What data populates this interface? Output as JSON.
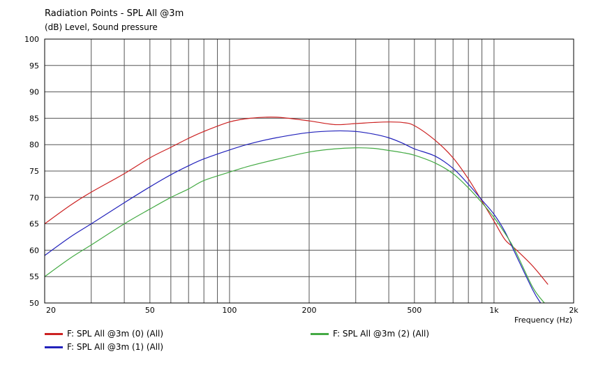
{
  "chart_data": {
    "type": "line",
    "title": "Radiation Points - SPL All @3m",
    "subtitle": "(dB)  Level, Sound pressure",
    "xlabel": "Frequency  (Hz)",
    "ylabel": "",
    "xscale": "log",
    "xlim": [
      20,
      2000
    ],
    "ylim": [
      50,
      100
    ],
    "grid": true,
    "legend_position": "bottom",
    "x_ticks": [
      20,
      50,
      100,
      200,
      500,
      1000,
      2000
    ],
    "x_tick_labels": [
      "20",
      "50",
      "100",
      "200",
      "500",
      "1k",
      "2k"
    ],
    "y_ticks": [
      50,
      55,
      60,
      65,
      70,
      75,
      80,
      85,
      90,
      95,
      100
    ],
    "series": [
      {
        "name": "F: SPL All @3m (0)  (All)",
        "color": "#cc2222",
        "x": [
          20,
          25,
          30,
          40,
          50,
          60,
          70,
          80,
          100,
          120,
          150,
          200,
          250,
          300,
          350,
          400,
          450,
          500,
          600,
          700,
          800,
          900,
          1000,
          1100,
          1200,
          1400,
          1600
        ],
        "y": [
          65,
          68.5,
          71,
          74.5,
          77.5,
          79.5,
          81.2,
          82.5,
          84.3,
          85,
          85.2,
          84.5,
          83.8,
          84,
          84.2,
          84.3,
          84.2,
          83.6,
          80.8,
          77.5,
          73.5,
          69.3,
          65.5,
          62,
          60.3,
          57,
          53.5
        ]
      },
      {
        "name": "F: SPL All @3m (1)  (All)",
        "color": "#2222bb",
        "x": [
          20,
          25,
          30,
          40,
          50,
          60,
          70,
          80,
          100,
          120,
          150,
          200,
          250,
          300,
          350,
          400,
          450,
          500,
          600,
          700,
          800,
          900,
          1000,
          1100,
          1200,
          1400,
          1500
        ],
        "y": [
          59,
          62.5,
          65,
          69,
          72,
          74.3,
          76,
          77.3,
          79,
          80.2,
          81.3,
          82.3,
          82.6,
          82.5,
          82,
          81.3,
          80.3,
          79.2,
          77.8,
          75.5,
          72.5,
          69.5,
          66.8,
          63.5,
          59.5,
          52.5,
          50
        ]
      },
      {
        "name": "F: SPL All @3m (2)  (All)",
        "color": "#44aa44",
        "x": [
          20,
          25,
          30,
          40,
          50,
          60,
          70,
          80,
          100,
          120,
          150,
          200,
          250,
          300,
          350,
          400,
          450,
          500,
          600,
          700,
          800,
          900,
          1000,
          1100,
          1200,
          1400,
          1550
        ],
        "y": [
          55,
          58.5,
          61,
          65,
          67.8,
          70,
          71.6,
          73.2,
          74.8,
          76,
          77.2,
          78.6,
          79.2,
          79.4,
          79.3,
          78.9,
          78.5,
          78,
          76.5,
          74.5,
          71.8,
          69,
          66.2,
          63.2,
          60,
          53,
          50
        ]
      }
    ]
  }
}
